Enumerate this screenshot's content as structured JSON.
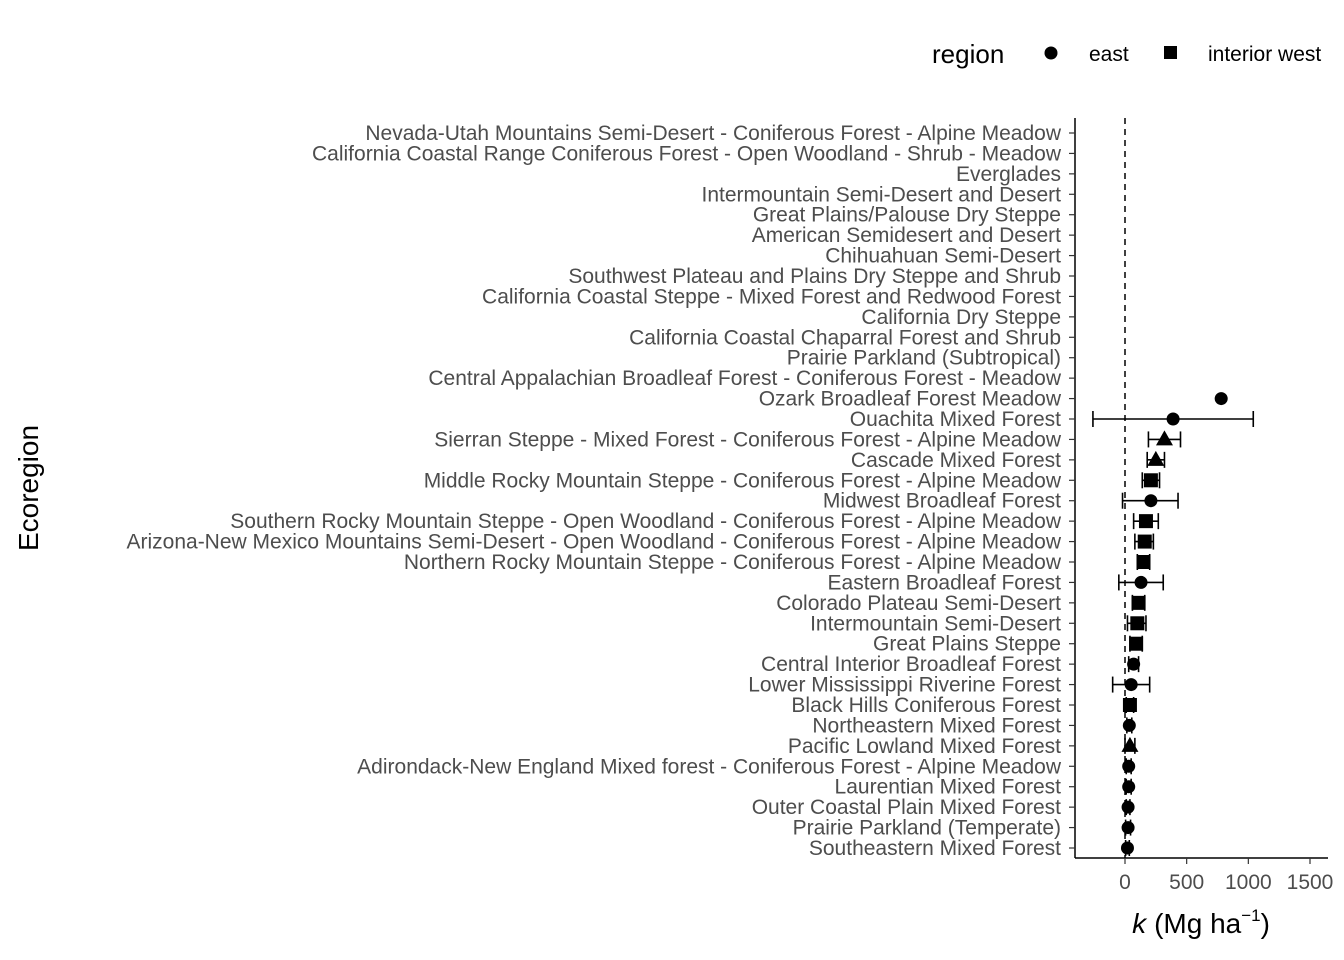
{
  "chart_data": {
    "type": "scatter",
    "xlabel": "k",
    "xlabel_units": "(Mg ha",
    "xlabel_sup": "−1",
    "xlabel_close": ")",
    "ylabel": "Ecoregion",
    "xlim": [
      -400,
      1600
    ],
    "xticks": [
      0,
      500,
      1000,
      1500
    ],
    "xtick_labels": [
      "0",
      "500",
      "1000",
      "1500"
    ],
    "reference_line": 0,
    "legend": {
      "title": "region",
      "placement": "top-right",
      "entries": [
        {
          "name": "east",
          "shape": "circle"
        },
        {
          "name": "interior west",
          "shape": "square"
        }
      ]
    },
    "categories": [
      "Nevada-Utah Mountains Semi-Desert - Coniferous Forest - Alpine Meadow",
      "California Coastal Range Coniferous Forest - Open Woodland - Shrub - Meadow",
      "Everglades",
      "Intermountain Semi-Desert and Desert",
      "Great Plains/Palouse Dry Steppe",
      "American Semidesert and Desert",
      "Chihuahuan Semi-Desert",
      "Southwest Plateau and Plains Dry Steppe and Shrub",
      "California Coastal Steppe - Mixed Forest and Redwood Forest",
      "California Dry Steppe",
      "California Coastal Chaparral Forest and Shrub",
      "Prairie Parkland (Subtropical)",
      "Central Appalachian Broadleaf Forest - Coniferous Forest - Meadow",
      "Ozark Broadleaf Forest Meadow",
      "Ouachita Mixed Forest",
      "Sierran Steppe - Mixed Forest - Coniferous Forest - Alpine Meadow",
      "Cascade Mixed Forest",
      "Middle Rocky Mountain Steppe - Coniferous Forest - Alpine Meadow",
      "Midwest Broadleaf Forest",
      "Southern Rocky Mountain Steppe - Open Woodland - Coniferous Forest - Alpine Meadow",
      "Arizona-New Mexico Mountains Semi-Desert - Open Woodland - Coniferous Forest - Alpine Meadow",
      "Northern Rocky Mountain Steppe - Coniferous Forest - Alpine Meadow",
      "Eastern Broadleaf Forest",
      "Colorado Plateau Semi-Desert",
      "Intermountain Semi-Desert",
      "Great Plains Steppe",
      "Central Interior Broadleaf Forest",
      "Lower Mississippi Riverine Forest",
      "Black Hills Coniferous Forest",
      "Northeastern Mixed Forest",
      "Pacific Lowland Mixed Forest",
      "Adirondack-New England Mixed forest - Coniferous Forest - Alpine Meadow",
      "Laurentian Mixed Forest",
      "Outer Coastal Plain Mixed Forest",
      "Prairie Parkland (Temperate)",
      "Southeastern Mixed Forest"
    ],
    "points": [
      {
        "category": "Ozark Broadleaf Forest Meadow",
        "shape": "circle",
        "x": 780,
        "lo": null,
        "hi": null
      },
      {
        "category": "Ouachita Mixed Forest",
        "shape": "circle",
        "x": 390,
        "lo": -260,
        "hi": 1040
      },
      {
        "category": "Sierran Steppe - Mixed Forest - Coniferous Forest - Alpine Meadow",
        "shape": "triangle",
        "x": 320,
        "lo": 190,
        "hi": 450
      },
      {
        "category": "Cascade Mixed Forest",
        "shape": "triangle",
        "x": 250,
        "lo": 180,
        "hi": 320
      },
      {
        "category": "Middle Rocky Mountain Steppe - Coniferous Forest - Alpine Meadow",
        "shape": "square",
        "x": 210,
        "lo": 140,
        "hi": 280
      },
      {
        "category": "Midwest Broadleaf Forest",
        "shape": "circle",
        "x": 210,
        "lo": -20,
        "hi": 430
      },
      {
        "category": "Southern Rocky Mountain Steppe - Open Woodland - Coniferous Forest - Alpine Meadow",
        "shape": "square",
        "x": 170,
        "lo": 70,
        "hi": 270
      },
      {
        "category": "Arizona-New Mexico Mountains Semi-Desert - Open Woodland - Coniferous Forest - Alpine Meadow",
        "shape": "square",
        "x": 160,
        "lo": 80,
        "hi": 230
      },
      {
        "category": "Northern Rocky Mountain Steppe - Coniferous Forest - Alpine Meadow",
        "shape": "square",
        "x": 150,
        "lo": 100,
        "hi": 200
      },
      {
        "category": "Eastern Broadleaf Forest",
        "shape": "circle",
        "x": 130,
        "lo": -50,
        "hi": 310
      },
      {
        "category": "Colorado Plateau Semi-Desert",
        "shape": "square",
        "x": 110,
        "lo": 60,
        "hi": 160
      },
      {
        "category": "Intermountain Semi-Desert",
        "shape": "square",
        "x": 100,
        "lo": 20,
        "hi": 170
      },
      {
        "category": "Great Plains Steppe",
        "shape": "square",
        "x": 90,
        "lo": 40,
        "hi": 140
      },
      {
        "category": "Central Interior Broadleaf Forest",
        "shape": "circle",
        "x": 70,
        "lo": 30,
        "hi": 110
      },
      {
        "category": "Lower Mississippi Riverine Forest",
        "shape": "circle",
        "x": 50,
        "lo": -100,
        "hi": 200
      },
      {
        "category": "Black Hills Coniferous Forest",
        "shape": "square",
        "x": 40,
        "lo": 10,
        "hi": 70
      },
      {
        "category": "Northeastern Mixed Forest",
        "shape": "circle",
        "x": 35,
        "lo": 15,
        "hi": 55
      },
      {
        "category": "Pacific Lowland Mixed Forest",
        "shape": "triangle",
        "x": 40,
        "lo": 0,
        "hi": 80
      },
      {
        "category": "Adirondack-New England Mixed forest - Coniferous Forest - Alpine Meadow",
        "shape": "circle",
        "x": 30,
        "lo": 10,
        "hi": 50
      },
      {
        "category": "Laurentian Mixed Forest",
        "shape": "circle",
        "x": 30,
        "lo": 10,
        "hi": 50
      },
      {
        "category": "Outer Coastal Plain Mixed Forest",
        "shape": "circle",
        "x": 25,
        "lo": 10,
        "hi": 40
      },
      {
        "category": "Prairie Parkland (Temperate)",
        "shape": "circle",
        "x": 25,
        "lo": 5,
        "hi": 45
      },
      {
        "category": "Southeastern Mixed Forest",
        "shape": "circle",
        "x": 20,
        "lo": 5,
        "hi": 35
      }
    ]
  }
}
